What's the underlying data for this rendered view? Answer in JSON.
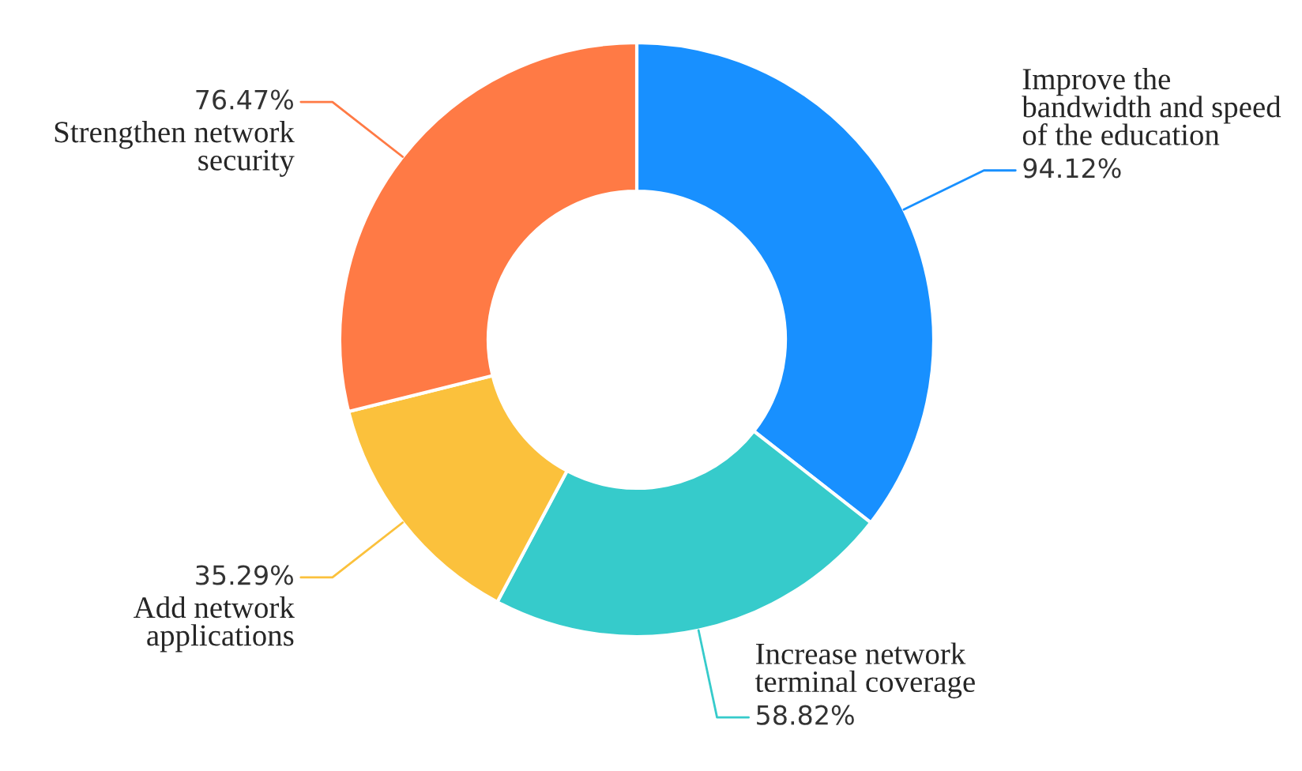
{
  "chart_data": {
    "type": "donut",
    "categories": [
      "Improve the\nbandwidth and speed\nof the education",
      "Increase network\nterminal coverage",
      "Add network\napplications",
      "Strengthen network\nsecurity"
    ],
    "values": [
      94.12,
      58.82,
      35.29,
      76.47
    ],
    "value_labels": [
      "94.12%",
      "58.82%",
      "35.29%",
      "76.47%"
    ],
    "colors": [
      "#1890ff",
      "#36cbcb",
      "#fbc13c",
      "#ff7a45"
    ],
    "legend": false
  }
}
